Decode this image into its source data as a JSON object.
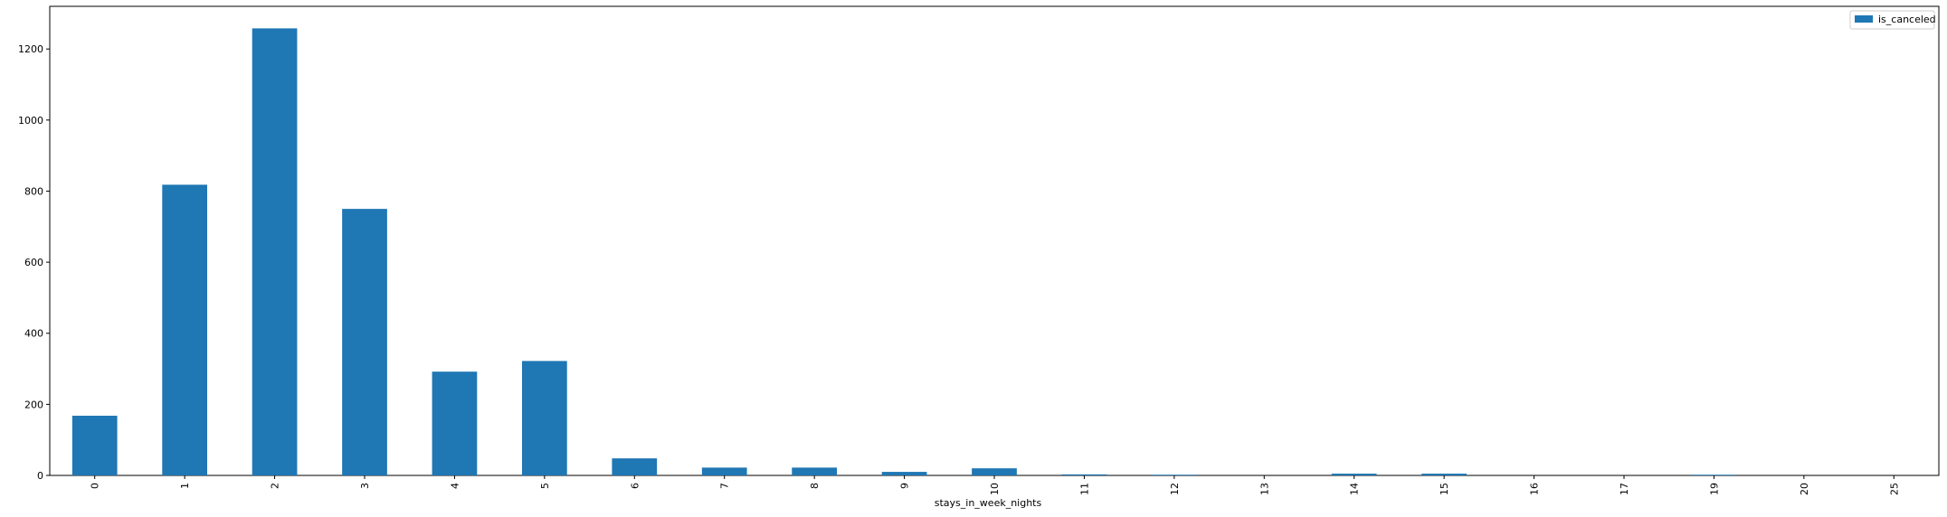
{
  "chart_data": {
    "type": "bar",
    "title": "",
    "xlabel": "stays_in_week_nights",
    "ylabel": "",
    "categories": [
      "0",
      "1",
      "2",
      "3",
      "4",
      "5",
      "6",
      "7",
      "8",
      "9",
      "10",
      "11",
      "12",
      "13",
      "14",
      "15",
      "16",
      "17",
      "19",
      "20",
      "25"
    ],
    "series": [
      {
        "name": "is_canceled",
        "color": "#1f77b4",
        "values": [
          168,
          818,
          1258,
          750,
          292,
          322,
          48,
          22,
          22,
          10,
          20,
          3,
          2,
          0,
          5,
          5,
          0,
          0,
          2,
          0,
          0
        ]
      }
    ],
    "ylim": [
      0,
      1320
    ],
    "yticks": [
      0,
      200,
      400,
      600,
      800,
      1000,
      1200
    ],
    "grid": false,
    "legend_position": "top-right"
  }
}
